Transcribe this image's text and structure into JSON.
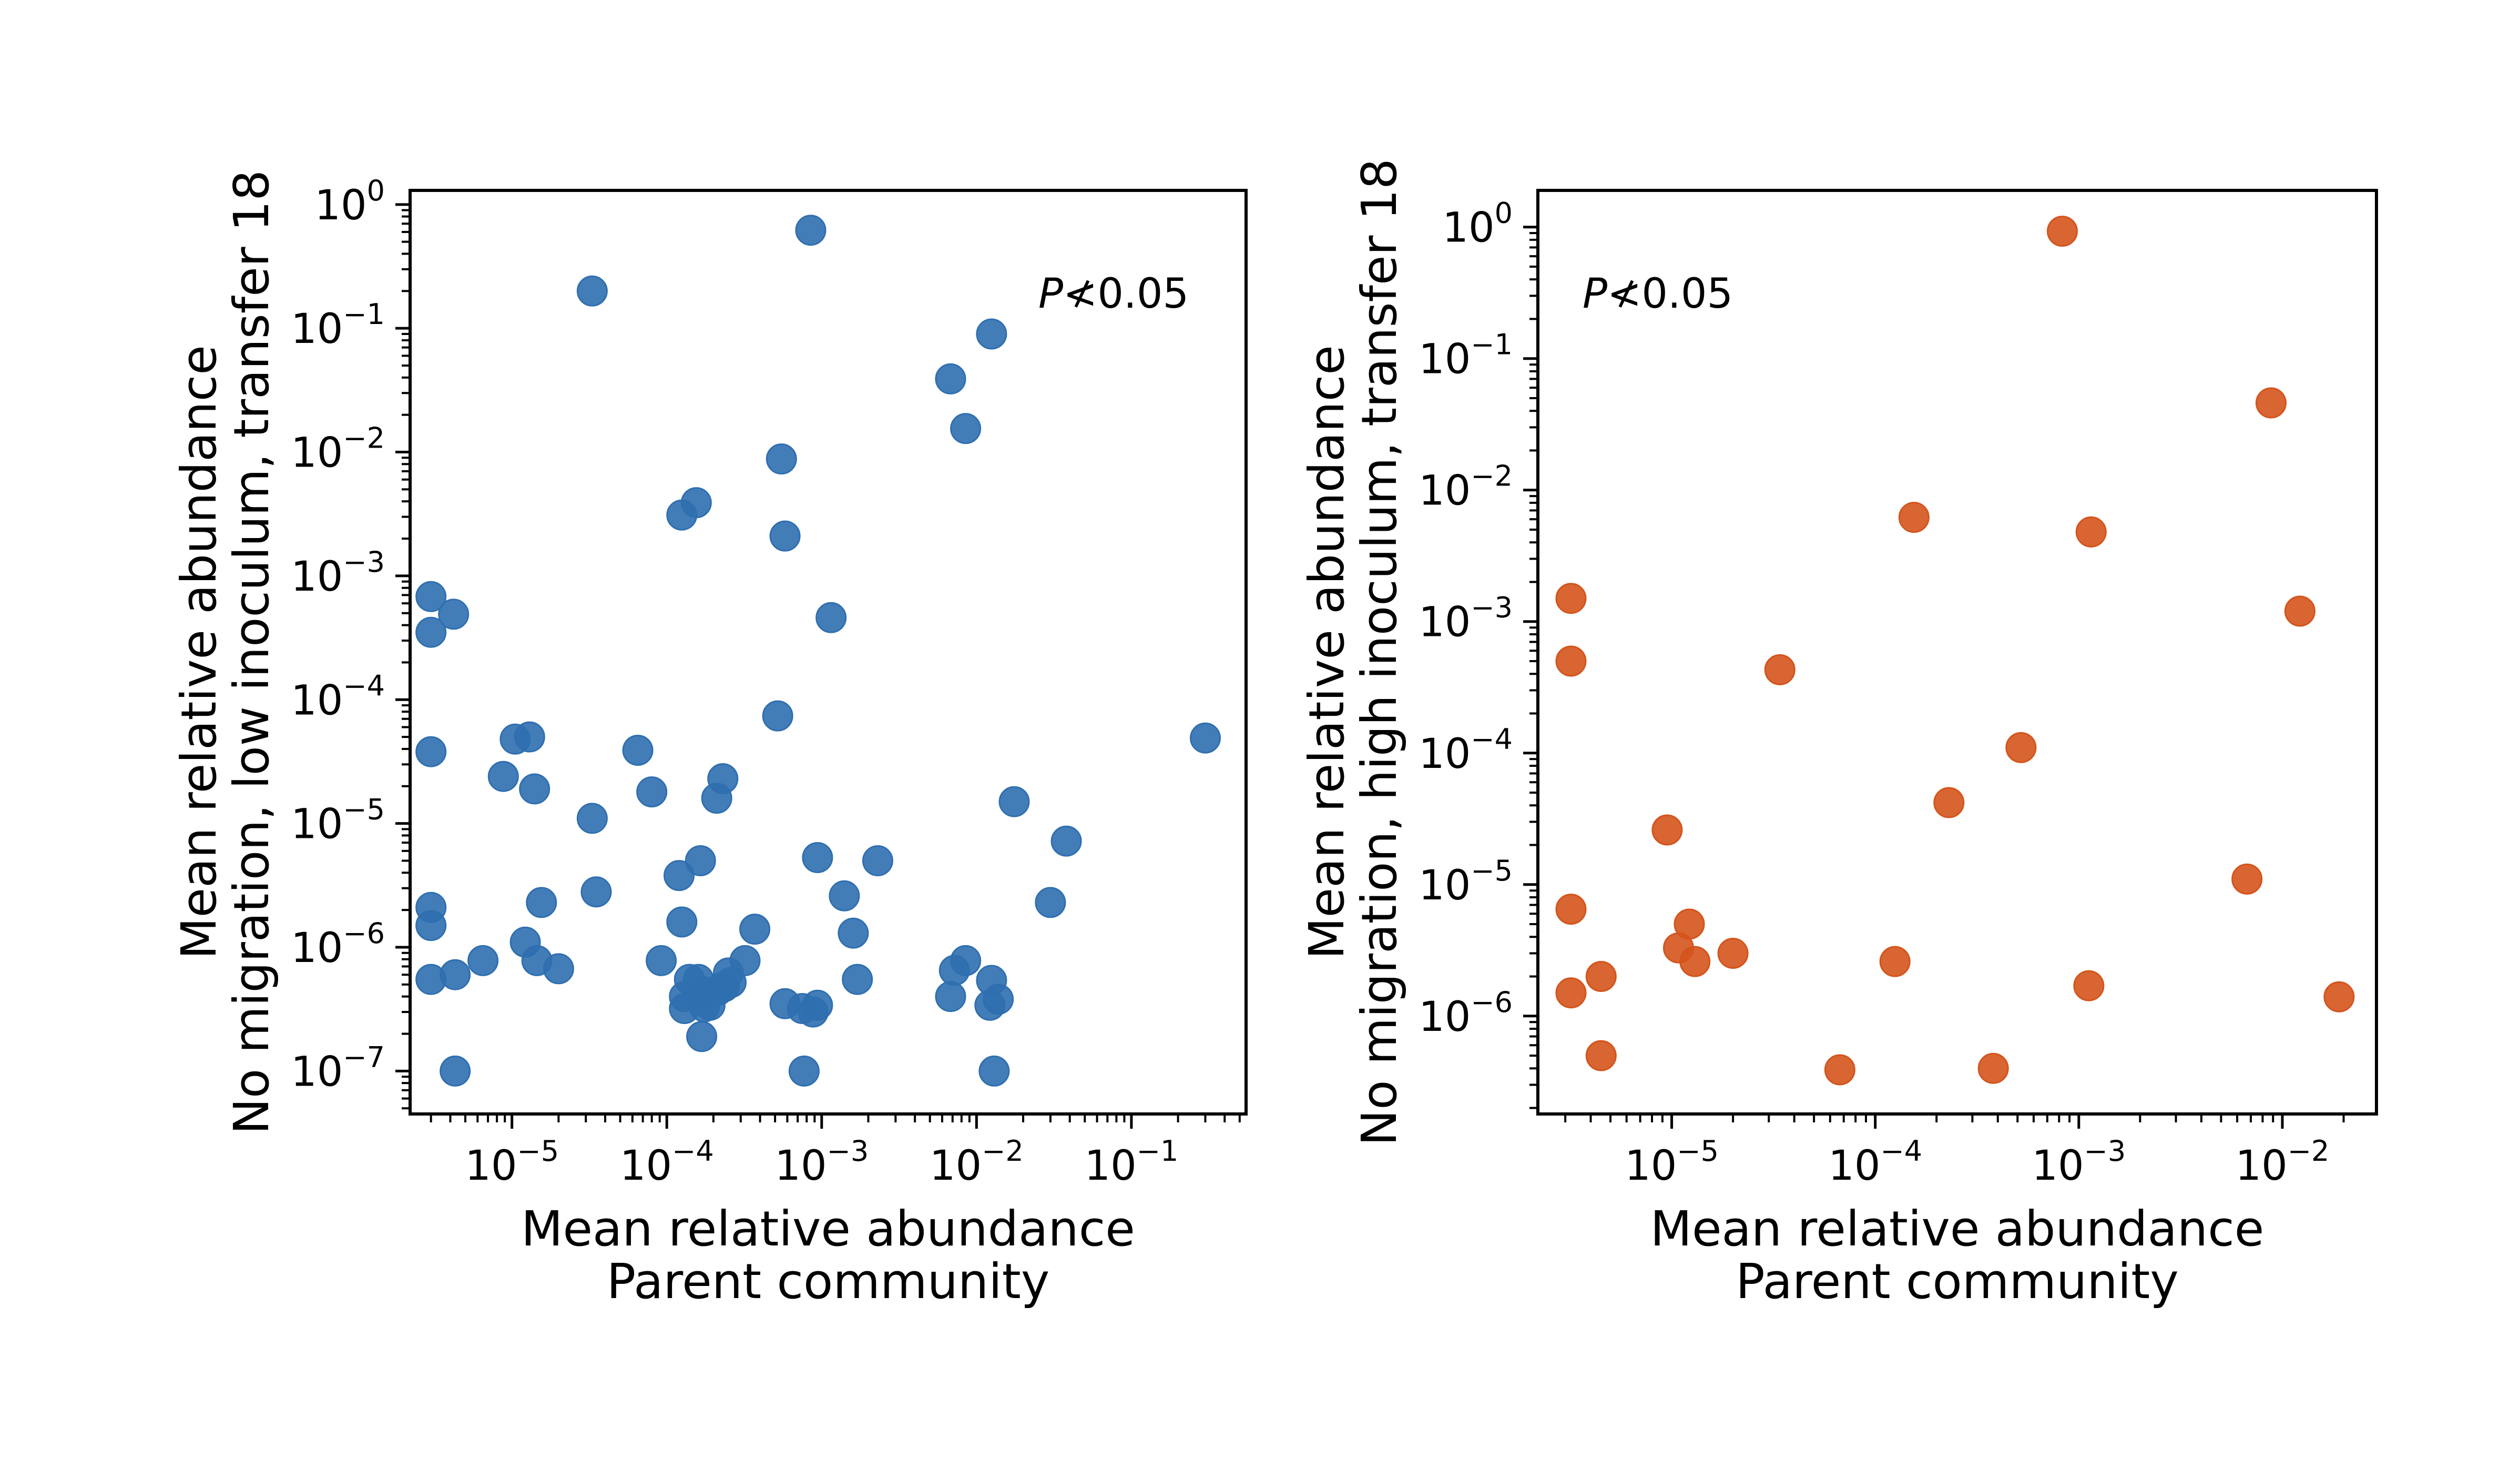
{
  "chart_data": [
    {
      "type": "scatter",
      "xlabel": [
        "Mean relative abundance",
        "Parent community"
      ],
      "ylabel": [
        "Mean relative abundance",
        "No migration, low inoculum, transfer 18"
      ],
      "annotation": {
        "italic": "P",
        "rest": "≮0.05"
      },
      "x_scale": "log",
      "y_scale": "log",
      "xlim": [
        2.2e-06,
        0.55
      ],
      "ylim": [
        4.5e-08,
        1.3
      ],
      "xtick_exponents": [
        -5,
        -4,
        -3,
        -2,
        -1
      ],
      "ytick_exponents": [
        -7,
        -6,
        -5,
        -4,
        -3,
        -2,
        -1,
        0
      ],
      "tick_base": "10",
      "color": "#2f6fb0",
      "points": [
        {
          "x": 0.00085,
          "y": 0.62
        },
        {
          "x": 3.3e-05,
          "y": 0.2
        },
        {
          "x": 0.0125,
          "y": 0.09
        },
        {
          "x": 0.0068,
          "y": 0.039
        },
        {
          "x": 0.0085,
          "y": 0.0155
        },
        {
          "x": 0.00055,
          "y": 0.0088
        },
        {
          "x": 0.000155,
          "y": 0.0039
        },
        {
          "x": 0.000125,
          "y": 0.0031
        },
        {
          "x": 0.00058,
          "y": 0.0021
        },
        {
          "x": 3e-06,
          "y": 0.00068
        },
        {
          "x": 4.2e-06,
          "y": 0.00049
        },
        {
          "x": 3e-06,
          "y": 0.00035
        },
        {
          "x": 0.00115,
          "y": 0.00046
        },
        {
          "x": 0.00052,
          "y": 7.4e-05
        },
        {
          "x": 0.3,
          "y": 4.9e-05
        },
        {
          "x": 1.05e-05,
          "y": 4.8e-05
        },
        {
          "x": 1.3e-05,
          "y": 5e-05
        },
        {
          "x": 3e-06,
          "y": 3.8e-05
        },
        {
          "x": 6.5e-05,
          "y": 3.9e-05
        },
        {
          "x": 8.8e-06,
          "y": 2.4e-05
        },
        {
          "x": 1.4e-05,
          "y": 1.9e-05
        },
        {
          "x": 8e-05,
          "y": 1.8e-05
        },
        {
          "x": 0.00023,
          "y": 2.3e-05
        },
        {
          "x": 0.00021,
          "y": 1.6e-05
        },
        {
          "x": 0.0175,
          "y": 1.5e-05
        },
        {
          "x": 3.3e-05,
          "y": 1.1e-05
        },
        {
          "x": 0.038,
          "y": 7.2e-06
        },
        {
          "x": 0.00094,
          "y": 5.3e-06
        },
        {
          "x": 0.0023,
          "y": 5e-06
        },
        {
          "x": 0.000165,
          "y": 5e-06
        },
        {
          "x": 0.00012,
          "y": 3.8e-06
        },
        {
          "x": 3.5e-05,
          "y": 2.8e-06
        },
        {
          "x": 0.0014,
          "y": 2.6e-06
        },
        {
          "x": 0.03,
          "y": 2.3e-06
        },
        {
          "x": 1.55e-05,
          "y": 2.3e-06
        },
        {
          "x": 3e-06,
          "y": 2.1e-06
        },
        {
          "x": 3e-06,
          "y": 1.5e-06
        },
        {
          "x": 0.000125,
          "y": 1.6e-06
        },
        {
          "x": 0.00037,
          "y": 1.4e-06
        },
        {
          "x": 0.0016,
          "y": 1.3e-06
        },
        {
          "x": 1.22e-05,
          "y": 1.1e-06
        },
        {
          "x": 1.45e-05,
          "y": 7.8e-07
        },
        {
          "x": 2e-05,
          "y": 6.7e-07
        },
        {
          "x": 6.5e-06,
          "y": 7.8e-07
        },
        {
          "x": 9.2e-05,
          "y": 7.8e-07
        },
        {
          "x": 0.00032,
          "y": 7.8e-07
        },
        {
          "x": 0.0085,
          "y": 7.8e-07
        },
        {
          "x": 0.0072,
          "y": 6.5e-07
        },
        {
          "x": 3e-06,
          "y": 5.5e-07
        },
        {
          "x": 4.3e-06,
          "y": 6e-07
        },
        {
          "x": 0.00014,
          "y": 5.5e-07
        },
        {
          "x": 0.00016,
          "y": 5.5e-07
        },
        {
          "x": 0.00025,
          "y": 6.2e-07
        },
        {
          "x": 0.00026,
          "y": 5.2e-07
        },
        {
          "x": 0.0017,
          "y": 5.5e-07
        },
        {
          "x": 0.0125,
          "y": 5.4e-07
        },
        {
          "x": 0.00013,
          "y": 4e-07
        },
        {
          "x": 0.00017,
          "y": 4.4e-07
        },
        {
          "x": 0.000215,
          "y": 4.5e-07
        },
        {
          "x": 0.000235,
          "y": 4.8e-07
        },
        {
          "x": 0.0068,
          "y": 4e-07
        },
        {
          "x": 0.0138,
          "y": 3.8e-07
        },
        {
          "x": 0.00013,
          "y": 3.2e-07
        },
        {
          "x": 0.000175,
          "y": 3.3e-07
        },
        {
          "x": 0.00019,
          "y": 3.4e-07
        },
        {
          "x": 0.00058,
          "y": 3.5e-07
        },
        {
          "x": 0.00075,
          "y": 3.2e-07
        },
        {
          "x": 0.00088,
          "y": 3e-07
        },
        {
          "x": 0.00094,
          "y": 3.4e-07
        },
        {
          "x": 0.0122,
          "y": 3.4e-07
        },
        {
          "x": 0.000168,
          "y": 1.9e-07
        },
        {
          "x": 4.3e-06,
          "y": 1e-07
        },
        {
          "x": 0.00077,
          "y": 1e-07
        },
        {
          "x": 0.013,
          "y": 1e-07
        }
      ]
    },
    {
      "type": "scatter",
      "xlabel": [
        "Mean relative abundance",
        "Parent community"
      ],
      "ylabel": [
        "Mean relative abundance",
        "No migration, high inoculum, transfer 18"
      ],
      "annotation": {
        "italic": "P",
        "rest": "≮0.05"
      },
      "x_scale": "log",
      "y_scale": "log",
      "xlim": [
        2.2e-06,
        0.029
      ],
      "ylim": [
        1.8e-07,
        1.9
      ],
      "xtick_exponents": [
        -5,
        -4,
        -3,
        -2
      ],
      "ytick_exponents": [
        -6,
        -5,
        -4,
        -3,
        -2,
        -1,
        0
      ],
      "tick_base": "10",
      "color": "#d4541c",
      "points": [
        {
          "x": 0.00083,
          "y": 0.93
        },
        {
          "x": 0.0088,
          "y": 0.046
        },
        {
          "x": 0.000155,
          "y": 0.0062
        },
        {
          "x": 0.00115,
          "y": 0.0048
        },
        {
          "x": 3.2e-06,
          "y": 0.0015
        },
        {
          "x": 0.0122,
          "y": 0.0012
        },
        {
          "x": 3.2e-06,
          "y": 0.0005
        },
        {
          "x": 3.4e-05,
          "y": 0.00043
        },
        {
          "x": 0.00052,
          "y": 0.00011
        },
        {
          "x": 0.00023,
          "y": 4.2e-05
        },
        {
          "x": 9.5e-06,
          "y": 2.6e-05
        },
        {
          "x": 0.0067,
          "y": 1.1e-05
        },
        {
          "x": 3.2e-06,
          "y": 6.5e-06
        },
        {
          "x": 1.22e-05,
          "y": 5e-06
        },
        {
          "x": 1.08e-05,
          "y": 3.3e-06
        },
        {
          "x": 1.3e-05,
          "y": 2.6e-06
        },
        {
          "x": 2e-05,
          "y": 3e-06
        },
        {
          "x": 0.000125,
          "y": 2.6e-06
        },
        {
          "x": 4.5e-06,
          "y": 2e-06
        },
        {
          "x": 3.2e-06,
          "y": 1.5e-06
        },
        {
          "x": 0.00112,
          "y": 1.7e-06
        },
        {
          "x": 0.019,
          "y": 1.4e-06
        },
        {
          "x": 4.5e-06,
          "y": 5e-07
        },
        {
          "x": 6.7e-05,
          "y": 3.9e-07
        },
        {
          "x": 0.00038,
          "y": 4e-07
        }
      ]
    }
  ]
}
